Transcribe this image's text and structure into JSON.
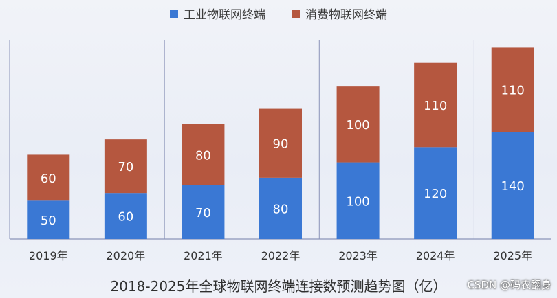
{
  "chart_data": {
    "type": "bar",
    "stacked": true,
    "title": "2018-2025年全球物联网终端连接数预测趋势图（亿）",
    "categories": [
      "2019年",
      "2020年",
      "2021年",
      "2022年",
      "2023年",
      "2024年",
      "2025年"
    ],
    "series": [
      {
        "name": "工业物联网终端",
        "values": [
          50,
          60,
          70,
          80,
          100,
          120,
          140
        ],
        "color": "#3a78d4"
      },
      {
        "name": "消费物联网终端",
        "values": [
          60,
          70,
          80,
          90,
          100,
          110,
          110
        ],
        "color": "#b5573f"
      }
    ],
    "ylim": [
      0,
      280
    ],
    "legend_position": "top-center",
    "grid": false,
    "data_labels": true,
    "label_color": "#ffffff",
    "axis_color": "#8a93b8"
  },
  "watermark": "CSDN @码农翻身"
}
